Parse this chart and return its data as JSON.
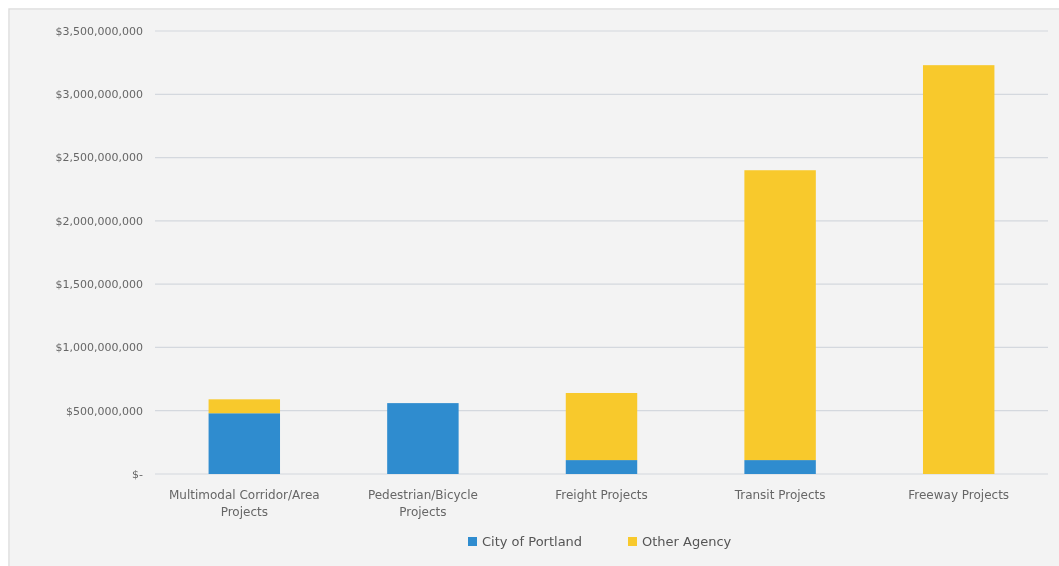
{
  "chart_data": {
    "type": "bar",
    "stacked": true,
    "categories": [
      "Multimodal Corridor/Area Projects",
      "Pedestrian/Bicycle Projects",
      "Freight Projects",
      "Transit Projects",
      "Freeway Projects"
    ],
    "series": [
      {
        "name": "City of Portland",
        "color": "#2f8ccf",
        "values": [
          480000000,
          560000000,
          110000000,
          110000000,
          0
        ]
      },
      {
        "name": "Other Agency",
        "color": "#f8c92c",
        "values": [
          110000000,
          0,
          530000000,
          2290000000,
          3230000000
        ]
      }
    ],
    "ylim": [
      0,
      3500000000
    ],
    "yticks": [
      {
        "value": 0,
        "label": "$-"
      },
      {
        "value": 500000000,
        "label": "$500,000,000"
      },
      {
        "value": 1000000000,
        "label": "$1,000,000,000"
      },
      {
        "value": 1500000000,
        "label": "$1,500,000,000"
      },
      {
        "value": 2000000000,
        "label": "$2,000,000,000"
      },
      {
        "value": 2500000000,
        "label": "$2,500,000,000"
      },
      {
        "value": 3000000000,
        "label": "$3,000,000,000"
      },
      {
        "value": 3500000000,
        "label": "$3,500,000,000"
      }
    ],
    "grid": "y",
    "legend": "bottom"
  }
}
